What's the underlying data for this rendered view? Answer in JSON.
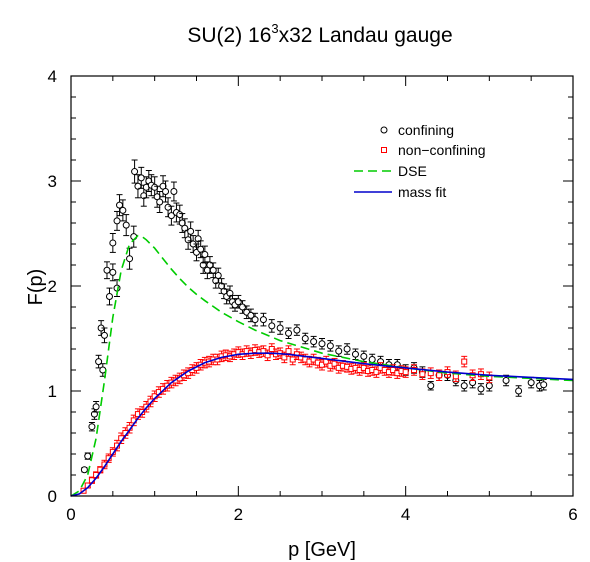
{
  "chart_data": {
    "type": "scatter",
    "title": "SU(2) 16",
    "title_sup": "3",
    "title_rest": "x32 Landau gauge",
    "xlabel": "p [GeV]",
    "ylabel": "F(p)",
    "xlim": [
      0,
      6
    ],
    "ylim": [
      0,
      4
    ],
    "xticks": [
      0,
      2,
      4,
      6
    ],
    "yticks": [
      0,
      1,
      2,
      3,
      4
    ],
    "grid": false,
    "legend_position": "top-right",
    "series": [
      {
        "name": "confining",
        "kind": "points",
        "marker": "circle",
        "color": "#000000",
        "points": [
          [
            0.16,
            0.25,
            0.02
          ],
          [
            0.2,
            0.38,
            0.03
          ],
          [
            0.25,
            0.66,
            0.04
          ],
          [
            0.28,
            0.78,
            0.05
          ],
          [
            0.3,
            0.85,
            0.05
          ],
          [
            0.33,
            1.28,
            0.06
          ],
          [
            0.38,
            1.2,
            0.06
          ],
          [
            0.36,
            1.6,
            0.07
          ],
          [
            0.4,
            1.53,
            0.07
          ],
          [
            0.43,
            2.15,
            0.08
          ],
          [
            0.46,
            1.9,
            0.08
          ],
          [
            0.5,
            2.13,
            0.08
          ],
          [
            0.5,
            2.41,
            0.09
          ],
          [
            0.55,
            1.98,
            0.08
          ],
          [
            0.55,
            2.62,
            0.09
          ],
          [
            0.58,
            2.77,
            0.1
          ],
          [
            0.62,
            2.72,
            0.1
          ],
          [
            0.66,
            2.58,
            0.1
          ],
          [
            0.7,
            2.26,
            0.1
          ],
          [
            0.75,
            2.47,
            0.1
          ],
          [
            0.76,
            3.09,
            0.11
          ],
          [
            0.8,
            2.95,
            0.11
          ],
          [
            0.84,
            3.03,
            0.1
          ],
          [
            0.87,
            2.86,
            0.1
          ],
          [
            0.9,
            2.94,
            0.1
          ],
          [
            0.93,
            3.0,
            0.1
          ],
          [
            0.96,
            2.96,
            0.1
          ],
          [
            1.0,
            2.94,
            0.1
          ],
          [
            1.03,
            2.85,
            0.1
          ],
          [
            1.06,
            2.8,
            0.1
          ],
          [
            1.1,
            2.95,
            0.1
          ],
          [
            1.13,
            2.9,
            0.1
          ],
          [
            1.16,
            2.75,
            0.09
          ],
          [
            1.2,
            2.67,
            0.09
          ],
          [
            1.23,
            2.9,
            0.09
          ],
          [
            1.26,
            2.7,
            0.09
          ],
          [
            1.3,
            2.68,
            0.09
          ],
          [
            1.33,
            2.6,
            0.09
          ],
          [
            1.36,
            2.55,
            0.09
          ],
          [
            1.4,
            2.44,
            0.09
          ],
          [
            1.43,
            2.52,
            0.09
          ],
          [
            1.46,
            2.4,
            0.08
          ],
          [
            1.5,
            2.32,
            0.08
          ],
          [
            1.52,
            2.45,
            0.08
          ],
          [
            1.55,
            2.35,
            0.08
          ],
          [
            1.58,
            2.2,
            0.08
          ],
          [
            1.6,
            2.3,
            0.08
          ],
          [
            1.63,
            2.15,
            0.08
          ],
          [
            1.66,
            2.2,
            0.08
          ],
          [
            1.7,
            2.15,
            0.07
          ],
          [
            1.73,
            2.05,
            0.07
          ],
          [
            1.76,
            2.1,
            0.07
          ],
          [
            1.8,
            2.0,
            0.07
          ],
          [
            1.83,
            1.95,
            0.07
          ],
          [
            1.86,
            1.9,
            0.07
          ],
          [
            1.9,
            1.93,
            0.07
          ],
          [
            1.93,
            1.85,
            0.06
          ],
          [
            1.96,
            1.82,
            0.06
          ],
          [
            2.0,
            1.85,
            0.06
          ],
          [
            2.05,
            1.8,
            0.06
          ],
          [
            2.1,
            1.75,
            0.06
          ],
          [
            2.15,
            1.72,
            0.06
          ],
          [
            2.2,
            1.68,
            0.06
          ],
          [
            2.3,
            1.68,
            0.06
          ],
          [
            2.4,
            1.62,
            0.06
          ],
          [
            2.5,
            1.6,
            0.06
          ],
          [
            2.6,
            1.55,
            0.05
          ],
          [
            2.7,
            1.58,
            0.05
          ],
          [
            2.8,
            1.5,
            0.05
          ],
          [
            2.9,
            1.47,
            0.05
          ],
          [
            3.0,
            1.45,
            0.05
          ],
          [
            3.1,
            1.43,
            0.05
          ],
          [
            3.2,
            1.38,
            0.05
          ],
          [
            3.3,
            1.4,
            0.05
          ],
          [
            3.4,
            1.35,
            0.05
          ],
          [
            3.5,
            1.33,
            0.05
          ],
          [
            3.6,
            1.3,
            0.05
          ],
          [
            3.7,
            1.28,
            0.05
          ],
          [
            3.8,
            1.25,
            0.05
          ],
          [
            3.9,
            1.25,
            0.05
          ],
          [
            4.0,
            1.2,
            0.05
          ],
          [
            4.1,
            1.22,
            0.05
          ],
          [
            4.2,
            1.18,
            0.05
          ],
          [
            4.3,
            1.05,
            0.04
          ],
          [
            4.4,
            1.15,
            0.05
          ],
          [
            4.5,
            1.15,
            0.05
          ],
          [
            4.6,
            1.1,
            0.05
          ],
          [
            4.7,
            1.05,
            0.05
          ],
          [
            4.8,
            1.08,
            0.05
          ],
          [
            4.9,
            1.02,
            0.05
          ],
          [
            5.0,
            1.05,
            0.05
          ],
          [
            5.2,
            1.1,
            0.05
          ],
          [
            5.35,
            1.0,
            0.05
          ],
          [
            5.5,
            1.08,
            0.05
          ],
          [
            5.6,
            1.05,
            0.05
          ],
          [
            5.65,
            1.06,
            0.05
          ]
        ]
      },
      {
        "name": "non−confining",
        "kind": "points",
        "marker": "square",
        "color": "#ff0000",
        "points": [
          [
            0.15,
            0.05,
            0.02
          ],
          [
            0.2,
            0.1,
            0.02
          ],
          [
            0.25,
            0.15,
            0.03
          ],
          [
            0.3,
            0.2,
            0.03
          ],
          [
            0.35,
            0.25,
            0.03
          ],
          [
            0.4,
            0.3,
            0.04
          ],
          [
            0.45,
            0.36,
            0.04
          ],
          [
            0.5,
            0.42,
            0.04
          ],
          [
            0.55,
            0.48,
            0.05
          ],
          [
            0.6,
            0.55,
            0.05
          ],
          [
            0.65,
            0.6,
            0.05
          ],
          [
            0.7,
            0.65,
            0.05
          ],
          [
            0.75,
            0.72,
            0.05
          ],
          [
            0.8,
            0.78,
            0.05
          ],
          [
            0.85,
            0.8,
            0.05
          ],
          [
            0.9,
            0.85,
            0.05
          ],
          [
            0.95,
            0.9,
            0.05
          ],
          [
            1.0,
            0.95,
            0.05
          ],
          [
            1.05,
            0.99,
            0.05
          ],
          [
            1.1,
            1.02,
            0.05
          ],
          [
            1.15,
            1.05,
            0.05
          ],
          [
            1.2,
            1.08,
            0.05
          ],
          [
            1.25,
            1.1,
            0.05
          ],
          [
            1.3,
            1.12,
            0.05
          ],
          [
            1.35,
            1.15,
            0.05
          ],
          [
            1.4,
            1.17,
            0.05
          ],
          [
            1.45,
            1.2,
            0.05
          ],
          [
            1.5,
            1.22,
            0.05
          ],
          [
            1.55,
            1.25,
            0.05
          ],
          [
            1.6,
            1.27,
            0.05
          ],
          [
            1.65,
            1.28,
            0.05
          ],
          [
            1.7,
            1.3,
            0.05
          ],
          [
            1.75,
            1.3,
            0.05
          ],
          [
            1.8,
            1.33,
            0.05
          ],
          [
            1.85,
            1.34,
            0.05
          ],
          [
            1.9,
            1.33,
            0.05
          ],
          [
            1.95,
            1.35,
            0.05
          ],
          [
            2.0,
            1.37,
            0.05
          ],
          [
            2.05,
            1.35,
            0.05
          ],
          [
            2.1,
            1.38,
            0.05
          ],
          [
            2.15,
            1.36,
            0.05
          ],
          [
            2.2,
            1.39,
            0.05
          ],
          [
            2.25,
            1.37,
            0.05
          ],
          [
            2.3,
            1.38,
            0.05
          ],
          [
            2.35,
            1.34,
            0.05
          ],
          [
            2.4,
            1.4,
            0.05
          ],
          [
            2.45,
            1.35,
            0.05
          ],
          [
            2.5,
            1.36,
            0.05
          ],
          [
            2.55,
            1.32,
            0.05
          ],
          [
            2.6,
            1.38,
            0.05
          ],
          [
            2.65,
            1.3,
            0.05
          ],
          [
            2.7,
            1.35,
            0.05
          ],
          [
            2.75,
            1.32,
            0.05
          ],
          [
            2.8,
            1.3,
            0.05
          ],
          [
            2.85,
            1.28,
            0.05
          ],
          [
            2.9,
            1.3,
            0.05
          ],
          [
            2.95,
            1.27,
            0.05
          ],
          [
            3.0,
            1.25,
            0.05
          ],
          [
            3.05,
            1.28,
            0.05
          ],
          [
            3.1,
            1.24,
            0.05
          ],
          [
            3.15,
            1.26,
            0.05
          ],
          [
            3.2,
            1.22,
            0.05
          ],
          [
            3.25,
            1.24,
            0.05
          ],
          [
            3.3,
            1.23,
            0.05
          ],
          [
            3.35,
            1.21,
            0.05
          ],
          [
            3.4,
            1.22,
            0.05
          ],
          [
            3.45,
            1.2,
            0.05
          ],
          [
            3.5,
            1.22,
            0.05
          ],
          [
            3.55,
            1.19,
            0.05
          ],
          [
            3.6,
            1.2,
            0.05
          ],
          [
            3.65,
            1.18,
            0.05
          ],
          [
            3.7,
            1.22,
            0.05
          ],
          [
            3.75,
            1.2,
            0.05
          ],
          [
            3.8,
            1.18,
            0.05
          ],
          [
            3.85,
            1.2,
            0.05
          ],
          [
            3.9,
            1.17,
            0.05
          ],
          [
            3.95,
            1.19,
            0.05
          ],
          [
            4.0,
            1.18,
            0.05
          ],
          [
            4.1,
            1.2,
            0.05
          ],
          [
            4.2,
            1.16,
            0.05
          ],
          [
            4.3,
            1.17,
            0.05
          ],
          [
            4.4,
            1.15,
            0.05
          ],
          [
            4.5,
            1.18,
            0.05
          ],
          [
            4.6,
            1.14,
            0.05
          ],
          [
            4.7,
            1.28,
            0.05
          ],
          [
            4.8,
            1.15,
            0.05
          ],
          [
            4.9,
            1.16,
            0.05
          ],
          [
            5.0,
            1.13,
            0.05
          ]
        ]
      },
      {
        "name": "DSE",
        "kind": "line",
        "style": "dashed",
        "color": "#00cc00",
        "x": [
          0,
          0.1,
          0.2,
          0.3,
          0.4,
          0.5,
          0.6,
          0.7,
          0.8,
          0.85,
          0.9,
          1.0,
          1.1,
          1.2,
          1.3,
          1.4,
          1.5,
          1.6,
          1.8,
          2.0,
          2.2,
          2.5,
          3.0,
          3.5,
          4.0,
          4.5,
          5.0,
          5.5,
          6.0
        ],
        "y": [
          0,
          0.05,
          0.2,
          0.55,
          1.1,
          1.7,
          2.15,
          2.4,
          2.48,
          2.47,
          2.44,
          2.36,
          2.26,
          2.16,
          2.07,
          1.99,
          1.92,
          1.86,
          1.75,
          1.66,
          1.58,
          1.48,
          1.36,
          1.28,
          1.22,
          1.17,
          1.14,
          1.12,
          1.1
        ]
      },
      {
        "name": "mass fit",
        "kind": "line",
        "style": "solid",
        "color": "#0000cc",
        "x": [
          0,
          0.1,
          0.2,
          0.3,
          0.4,
          0.5,
          0.6,
          0.7,
          0.8,
          0.9,
          1.0,
          1.2,
          1.4,
          1.6,
          1.8,
          2.0,
          2.2,
          2.4,
          2.6,
          2.8,
          3.0,
          3.5,
          4.0,
          4.5,
          5.0,
          5.5,
          6.0
        ],
        "y": [
          0,
          0.02,
          0.08,
          0.17,
          0.28,
          0.4,
          0.52,
          0.63,
          0.74,
          0.84,
          0.93,
          1.08,
          1.19,
          1.27,
          1.32,
          1.35,
          1.36,
          1.36,
          1.35,
          1.33,
          1.31,
          1.26,
          1.22,
          1.18,
          1.15,
          1.13,
          1.11
        ]
      }
    ]
  }
}
